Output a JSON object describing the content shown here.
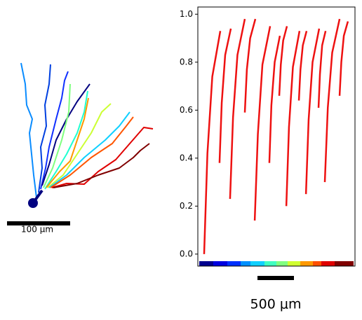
{
  "morphology": {
    "scale_bar_label": "100 μm"
  },
  "chart_data": {
    "type": "line",
    "color": "#ee1111",
    "xlim": [
      0,
      100
    ],
    "ylim": [
      -0.05,
      1.03
    ],
    "yticks": [
      {
        "value": 0,
        "label": "0.0"
      },
      {
        "value": 0.2,
        "label": "0.2"
      },
      {
        "value": 0.4,
        "label": "0.4"
      },
      {
        "value": 0.6,
        "label": "0.6"
      },
      {
        "value": 0.8,
        "label": "0.8"
      },
      {
        "value": 1,
        "label": "1.0"
      }
    ],
    "scale_bar_label": "500  μm",
    "series": [
      {
        "x": [
          4.0,
          6.1,
          9.2,
          14.3
        ],
        "values": [
          0,
          0.42,
          0.74,
          0.93
        ]
      },
      {
        "x": [
          13.8,
          15.2,
          17.4,
          21.0
        ],
        "values": [
          0.38,
          0.63,
          0.83,
          0.94
        ]
      },
      {
        "x": [
          20.5,
          22.4,
          25.2,
          29.9
        ],
        "values": [
          0.23,
          0.57,
          0.83,
          0.98
        ]
      },
      {
        "x": [
          29.9,
          31.2,
          33.3,
          36.6
        ],
        "values": [
          0.59,
          0.77,
          0.9,
          0.98
        ]
      },
      {
        "x": [
          36.2,
          38.2,
          41.1,
          46.0
        ],
        "values": [
          0.14,
          0.5,
          0.79,
          0.95
        ]
      },
      {
        "x": [
          45.5,
          46.8,
          48.9,
          52.2
        ],
        "values": [
          0.38,
          0.62,
          0.8,
          0.91
        ]
      },
      {
        "x": [
          51.8,
          52.8,
          54.3,
          56.7
        ],
        "values": [
          0.66,
          0.79,
          0.89,
          0.95
        ]
      },
      {
        "x": [
          56.3,
          58.0,
          60.5,
          64.7
        ],
        "values": [
          0.2,
          0.53,
          0.78,
          0.93
        ]
      },
      {
        "x": [
          64.3,
          65.3,
          66.8,
          69.2
        ],
        "values": [
          0.64,
          0.77,
          0.87,
          0.93
        ]
      },
      {
        "x": [
          68.8,
          70.5,
          73.0,
          77.2
        ],
        "values": [
          0.25,
          0.56,
          0.8,
          0.94
        ]
      },
      {
        "x": [
          76.8,
          77.7,
          79.1,
          81.3
        ],
        "values": [
          0.61,
          0.75,
          0.87,
          0.93
        ]
      },
      {
        "x": [
          80.8,
          82.7,
          85.5,
          90.2
        ],
        "values": [
          0.3,
          0.61,
          0.84,
          0.98
        ]
      },
      {
        "x": [
          90.2,
          91.3,
          92.9,
          95.5
        ],
        "values": [
          0.66,
          0.8,
          0.91,
          0.97
        ]
      }
    ]
  }
}
